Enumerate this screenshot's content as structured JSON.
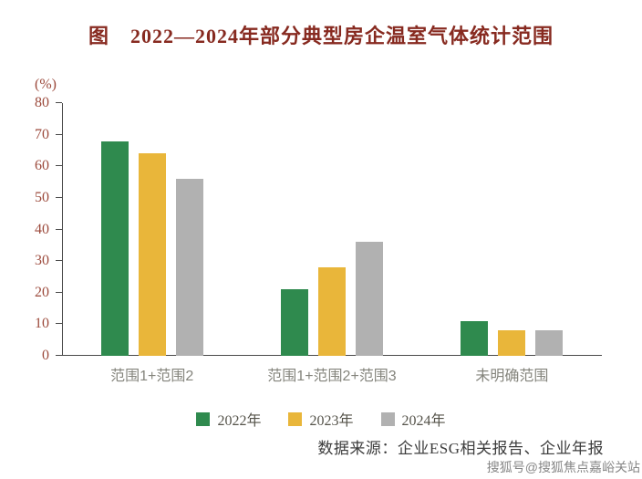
{
  "title": "图　2022—2024年部分典型房企温室气体统计范围",
  "source": "数据来源：企业ESG相关报告、企业年报",
  "watermark": "搜狐号@搜狐焦点嘉峪关站",
  "chart_data": {
    "type": "bar",
    "title": "图　2022—2024年部分典型房企温室气体统计范围",
    "xlabel": "",
    "ylabel": "(%)",
    "ylim": [
      0,
      80
    ],
    "yticks": [
      0,
      10,
      20,
      30,
      40,
      50,
      60,
      70,
      80
    ],
    "grid": false,
    "legend_position": "bottom",
    "categories": [
      "范围1+范围2",
      "范围1+范围2+范围3",
      "未明确范围"
    ],
    "series": [
      {
        "name": "2022年",
        "color": "#2f8a4e",
        "values": [
          68,
          21,
          11
        ]
      },
      {
        "name": "2023年",
        "color": "#e9b63a",
        "values": [
          64,
          28,
          8
        ]
      },
      {
        "name": "2024年",
        "color": "#b1b1b1",
        "values": [
          56,
          36,
          8
        ]
      }
    ]
  }
}
